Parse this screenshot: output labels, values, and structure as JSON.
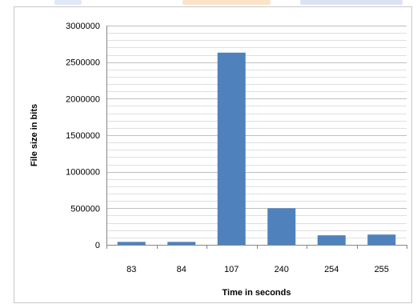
{
  "chart_data": {
    "type": "bar",
    "categories": [
      "83",
      "84",
      "107",
      "240",
      "254",
      "255"
    ],
    "values": [
      40000,
      40000,
      2630000,
      500000,
      130000,
      140000
    ],
    "title": "",
    "xlabel": "Time in seconds",
    "ylabel": "File size in bits",
    "ylim": [
      0,
      3000000
    ],
    "yticks": [
      "0",
      "500000",
      "1000000",
      "1500000",
      "2000000",
      "2500000",
      "3000000"
    ],
    "grid": true,
    "legend": "none",
    "bar_color": "#4f81bd"
  },
  "colors": {
    "grid": "#bfbfbf",
    "axis": "#868686",
    "frame": "#c8c8c8"
  }
}
